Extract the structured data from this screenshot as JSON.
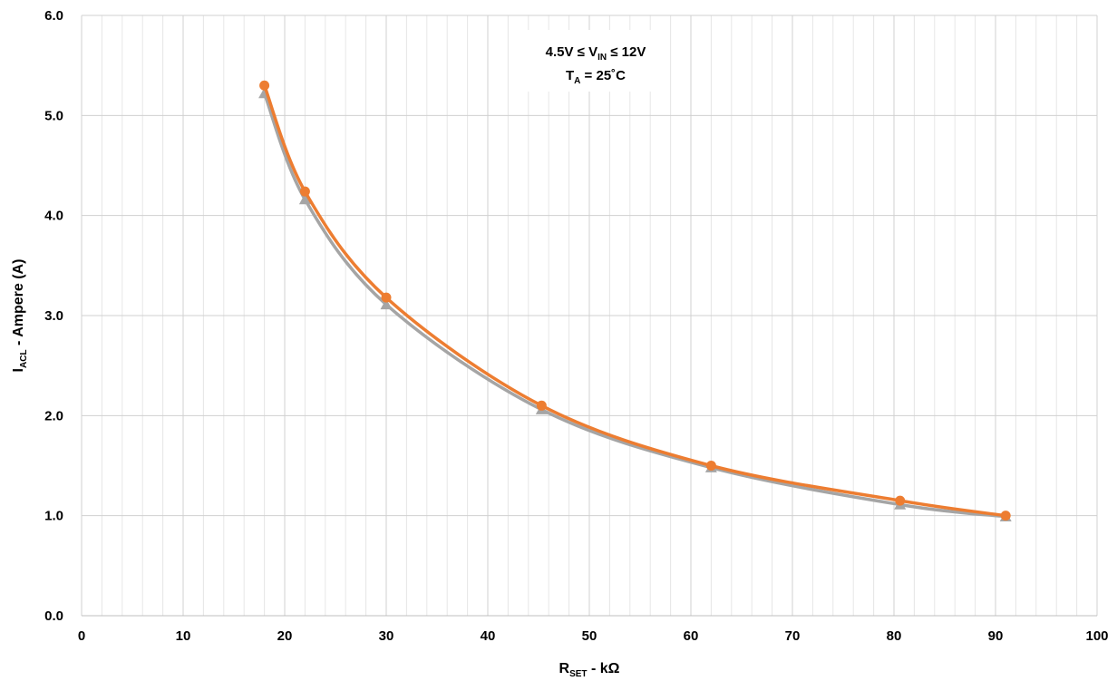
{
  "chart_data": {
    "type": "line",
    "title": "",
    "xlabel": {
      "main": "R",
      "sub": "SET",
      "rest": " - kΩ"
    },
    "ylabel": {
      "main": "I",
      "sub": "ACL",
      "rest": " - Ampere (A)"
    },
    "xlim": [
      0,
      100
    ],
    "ylim": [
      0,
      6
    ],
    "x_major_ticks": [
      0,
      10,
      20,
      30,
      40,
      50,
      60,
      70,
      80,
      90,
      100
    ],
    "x_minor_step": 2,
    "y_ticks": [
      "0.0",
      "1.0",
      "2.0",
      "3.0",
      "4.0",
      "5.0",
      "6.0"
    ],
    "grid": true,
    "annotation": {
      "line1": {
        "prefix": "4.5V ≤ V",
        "sub": "IN",
        "suffix": " ≤ 12V"
      },
      "line2": {
        "prefix": "T",
        "sub": "A",
        "suffix": " = 25˚C"
      }
    },
    "series": [
      {
        "color": "#ED7D31",
        "marker": "circle",
        "x": [
          18,
          22,
          30,
          45.3,
          62,
          80.6,
          91
        ],
        "y": [
          5.3,
          4.24,
          3.18,
          2.1,
          1.5,
          1.15,
          1.0
        ]
      },
      {
        "color": "#A5A5A5",
        "marker": "triangle",
        "x": [
          18,
          22,
          30,
          45.3,
          62,
          80.6,
          91
        ],
        "y": [
          5.22,
          4.16,
          3.11,
          2.06,
          1.48,
          1.11,
          0.99
        ]
      }
    ]
  }
}
